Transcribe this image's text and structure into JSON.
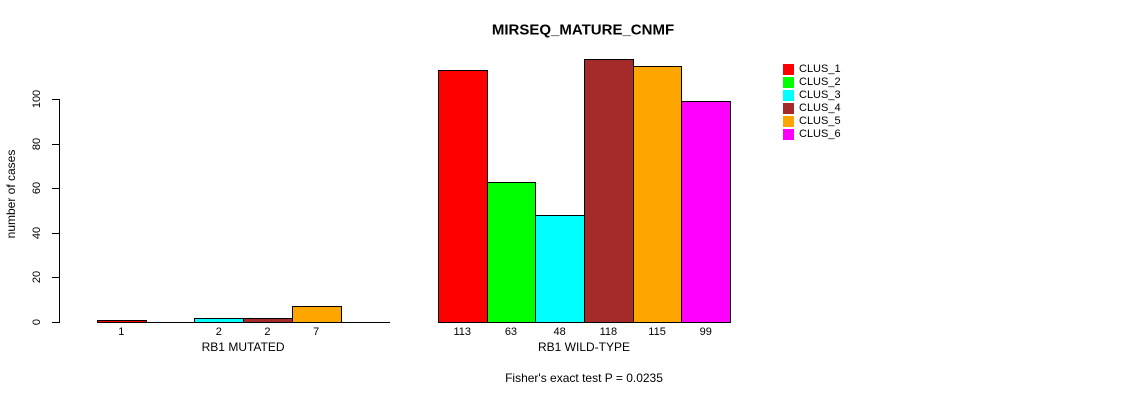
{
  "chart_data": {
    "type": "bar",
    "title": "MIRSEQ_MATURE_CNMF",
    "ylabel": "number of cases",
    "xlabel": "",
    "ylim": [
      0,
      100
    ],
    "yticks": [
      "0",
      "20",
      "40",
      "60",
      "80",
      "100"
    ],
    "ytick_values": [
      0,
      20,
      40,
      60,
      80,
      100
    ],
    "grid": false,
    "legend_position": "right",
    "categories": [
      "RB1 MUTATED",
      "RB1 WILD-TYPE"
    ],
    "series": [
      {
        "name": "CLUS_1",
        "color": "#FF0000",
        "values": [
          1,
          113
        ]
      },
      {
        "name": "CLUS_2",
        "color": "#00FF00",
        "values": [
          0,
          63
        ]
      },
      {
        "name": "CLUS_3",
        "color": "#00FFFF",
        "values": [
          2,
          48
        ]
      },
      {
        "name": "CLUS_4",
        "color": "#A52A2A",
        "values": [
          2,
          118
        ]
      },
      {
        "name": "CLUS_5",
        "color": "#FFA500",
        "values": [
          7,
          115
        ]
      },
      {
        "name": "CLUS_6",
        "color": "#FF00FF",
        "values": [
          0,
          99
        ]
      }
    ],
    "bar_value_labels": [
      [
        "1",
        "",
        "2",
        "2",
        "7",
        ""
      ],
      [
        "113",
        "63",
        "48",
        "118",
        "115",
        "99"
      ]
    ],
    "zero_bars_hidden": true,
    "annotation": "Fisher's exact test P = 0.0235"
  }
}
